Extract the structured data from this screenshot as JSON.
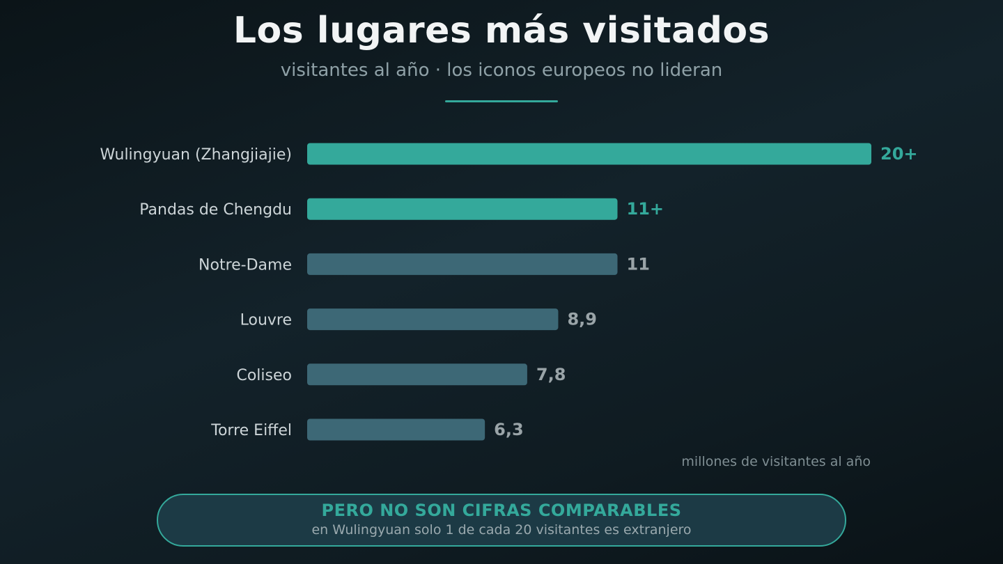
{
  "header": {
    "title": "Los lugares más visitados",
    "subtitle": "visitantes al año · los iconos europeos no lideran"
  },
  "chart_data": {
    "type": "bar",
    "orientation": "horizontal",
    "categories": [
      "Wulingyuan (Zhangjiajie)",
      "Pandas de Chengdu",
      "Notre-Dame",
      "Louvre",
      "Coliseo",
      "Torre Eiffel"
    ],
    "values": [
      20,
      11,
      11,
      8.9,
      7.8,
      6.3
    ],
    "value_labels": [
      "20+",
      "11+",
      "11",
      "8,9",
      "7,8",
      "6,3"
    ],
    "highlighted": [
      true,
      true,
      false,
      false,
      false,
      false
    ],
    "unit_note": "millones de visitantes al año",
    "xlim": [
      0,
      20
    ],
    "grid": false,
    "colors": {
      "highlight": "#34a99b",
      "default_bar": "#3d6876",
      "default_value_text": "#9aa4a8"
    }
  },
  "callout": {
    "title": "PERO NO SON CIFRAS COMPARABLES",
    "text": "en Wulingyuan solo 1 de cada 20 visitantes es extranjero"
  }
}
